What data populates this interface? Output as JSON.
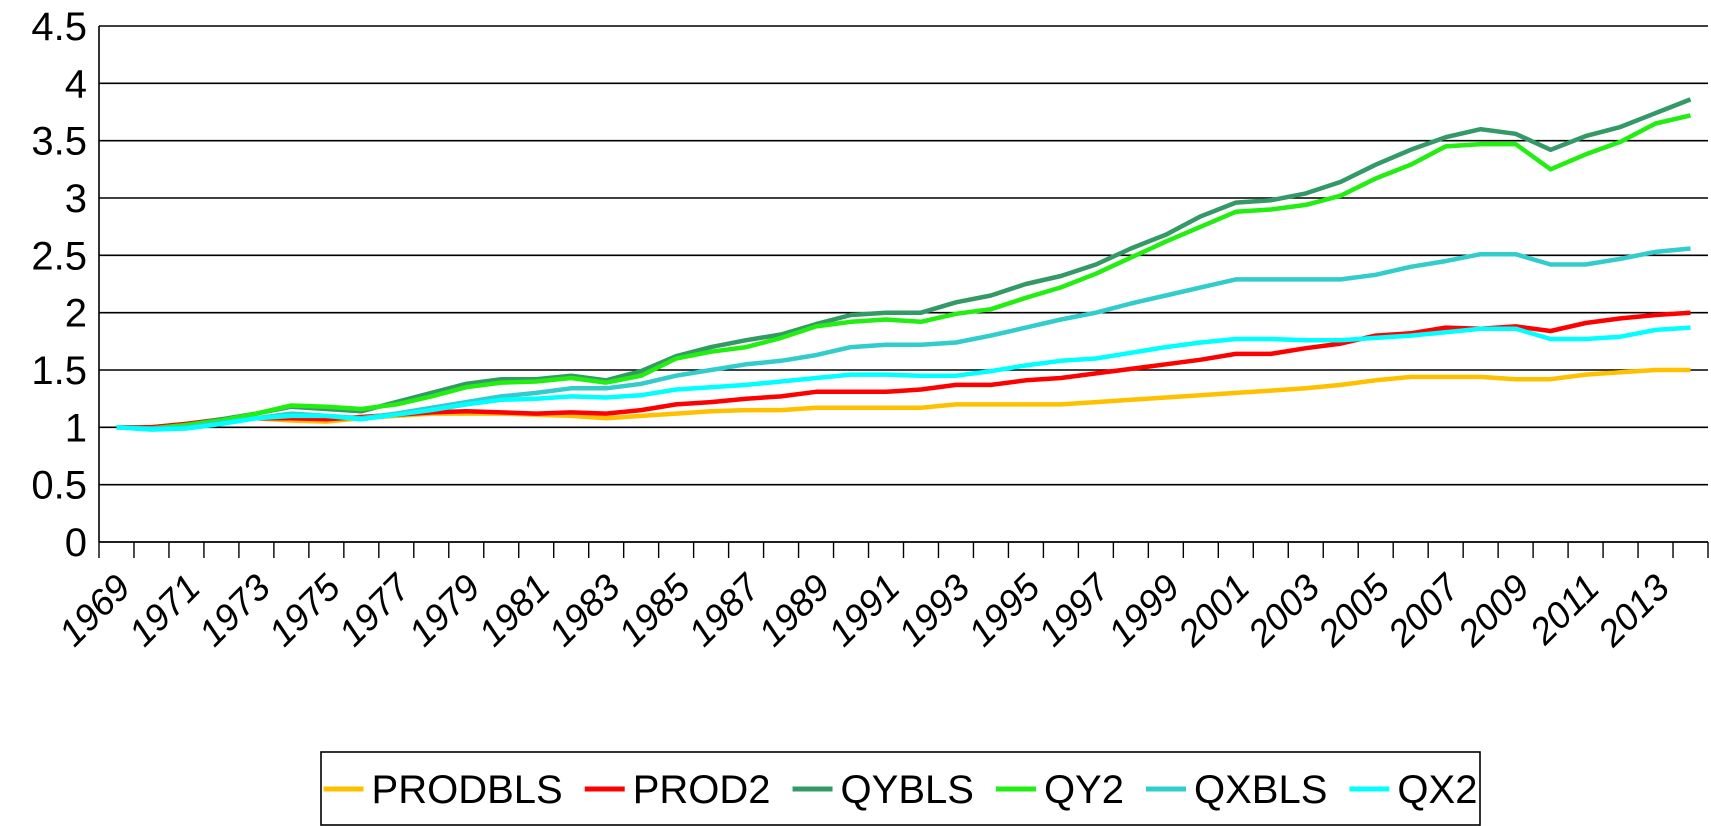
{
  "chart_data": {
    "type": "line",
    "categories": [
      "1969",
      null,
      "1971",
      null,
      "1973",
      null,
      "1975",
      null,
      "1977",
      null,
      "1979",
      null,
      "1981",
      null,
      "1983",
      null,
      "1985",
      null,
      "1987",
      null,
      "1989",
      null,
      "1991",
      null,
      "1993",
      null,
      "1995",
      null,
      "1997",
      null,
      "1999",
      null,
      "2001",
      null,
      "2003",
      null,
      "2005",
      null,
      "2007",
      null,
      "2009",
      null,
      "2011",
      null,
      "2013",
      null
    ],
    "ylim": [
      0,
      4.5
    ],
    "yticks": [
      0,
      0.5,
      1,
      1.5,
      2,
      2.5,
      3,
      3.5,
      4,
      4.5
    ],
    "grid": true,
    "legend": "bottom",
    "series": [
      {
        "name": "PRODBLS",
        "color": "#ffc000",
        "values": [
          1.0,
          1.0,
          1.03,
          1.06,
          1.08,
          1.06,
          1.05,
          1.08,
          1.1,
          1.12,
          1.12,
          1.12,
          1.11,
          1.1,
          1.08,
          1.1,
          1.12,
          1.14,
          1.15,
          1.15,
          1.17,
          1.17,
          1.17,
          1.17,
          1.2,
          1.2,
          1.2,
          1.2,
          1.22,
          1.24,
          1.26,
          1.28,
          1.3,
          1.32,
          1.34,
          1.37,
          1.41,
          1.44,
          1.44,
          1.44,
          1.42,
          1.42,
          1.46,
          1.48,
          1.5,
          1.5
        ]
      },
      {
        "name": "PROD2",
        "color": "#ff0000",
        "values": [
          1.0,
          1.0,
          1.03,
          1.07,
          1.08,
          1.08,
          1.07,
          1.09,
          1.11,
          1.13,
          1.14,
          1.13,
          1.12,
          1.13,
          1.12,
          1.15,
          1.2,
          1.22,
          1.25,
          1.27,
          1.31,
          1.31,
          1.31,
          1.33,
          1.37,
          1.37,
          1.41,
          1.43,
          1.47,
          1.51,
          1.55,
          1.59,
          1.64,
          1.64,
          1.69,
          1.73,
          1.8,
          1.82,
          1.87,
          1.86,
          1.88,
          1.84,
          1.91,
          1.95,
          1.98,
          2.0
        ]
      },
      {
        "name": "QYBLS",
        "color": "#339966",
        "values": [
          1.0,
          0.99,
          1.02,
          1.07,
          1.12,
          1.18,
          1.16,
          1.14,
          1.22,
          1.3,
          1.38,
          1.42,
          1.42,
          1.45,
          1.41,
          1.49,
          1.62,
          1.7,
          1.76,
          1.81,
          1.9,
          1.98,
          2.0,
          2.0,
          2.09,
          2.15,
          2.25,
          2.32,
          2.42,
          2.56,
          2.68,
          2.84,
          2.96,
          2.98,
          3.04,
          3.14,
          3.29,
          3.42,
          3.53,
          3.6,
          3.56,
          3.42,
          3.54,
          3.62,
          3.74,
          3.86
        ]
      },
      {
        "name": "QY2",
        "color": "#22ee11",
        "values": [
          1.0,
          0.99,
          1.02,
          1.06,
          1.12,
          1.19,
          1.18,
          1.16,
          1.2,
          1.27,
          1.35,
          1.39,
          1.4,
          1.43,
          1.39,
          1.45,
          1.6,
          1.66,
          1.7,
          1.78,
          1.88,
          1.92,
          1.94,
          1.92,
          1.99,
          2.03,
          2.13,
          2.22,
          2.34,
          2.48,
          2.62,
          2.75,
          2.88,
          2.9,
          2.94,
          3.02,
          3.17,
          3.29,
          3.45,
          3.47,
          3.47,
          3.25,
          3.38,
          3.49,
          3.65,
          3.72
        ]
      },
      {
        "name": "QXBLS",
        "color": "#33cccc",
        "values": [
          1.0,
          0.99,
          1.0,
          1.04,
          1.08,
          1.12,
          1.1,
          1.08,
          1.12,
          1.17,
          1.22,
          1.27,
          1.3,
          1.34,
          1.34,
          1.38,
          1.45,
          1.5,
          1.55,
          1.58,
          1.63,
          1.7,
          1.72,
          1.72,
          1.74,
          1.8,
          1.87,
          1.94,
          2.0,
          2.08,
          2.15,
          2.22,
          2.29,
          2.29,
          2.29,
          2.29,
          2.33,
          2.4,
          2.45,
          2.51,
          2.51,
          2.42,
          2.42,
          2.47,
          2.53,
          2.56
        ]
      },
      {
        "name": "QX2",
        "color": "#00ffff",
        "values": [
          1.0,
          0.98,
          0.99,
          1.03,
          1.08,
          1.1,
          1.1,
          1.07,
          1.11,
          1.15,
          1.2,
          1.24,
          1.25,
          1.27,
          1.26,
          1.28,
          1.33,
          1.35,
          1.37,
          1.4,
          1.43,
          1.46,
          1.46,
          1.45,
          1.45,
          1.49,
          1.54,
          1.58,
          1.6,
          1.65,
          1.7,
          1.74,
          1.77,
          1.77,
          1.76,
          1.76,
          1.78,
          1.8,
          1.83,
          1.86,
          1.86,
          1.77,
          1.77,
          1.79,
          1.85,
          1.87
        ]
      }
    ]
  }
}
